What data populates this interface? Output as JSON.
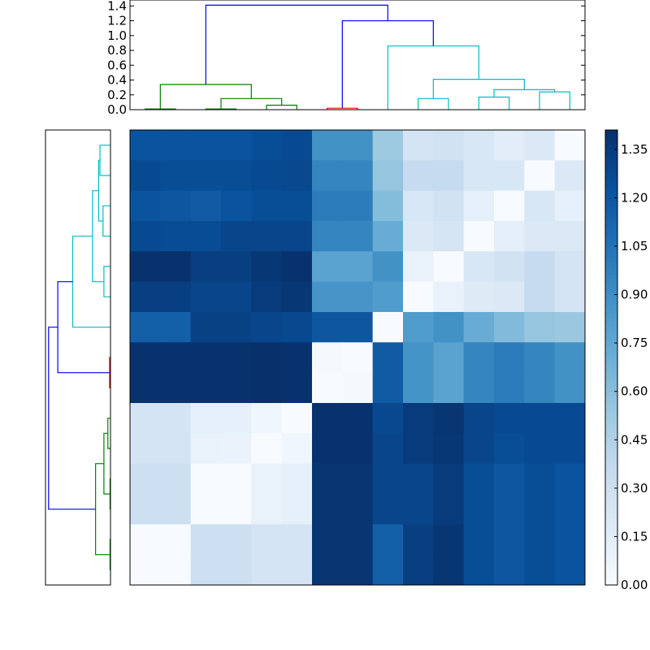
{
  "chart_data": {
    "type": "heatmap",
    "colormap": "Blues",
    "color_range": [
      0.0,
      1.41
    ],
    "colorbar_ticks": [
      "0.00",
      "0.15",
      "0.30",
      "0.45",
      "0.60",
      "0.75",
      "0.90",
      "1.05",
      "1.20",
      "1.35"
    ],
    "colorbar_tick_values": [
      0.0,
      0.15,
      0.3,
      0.45,
      0.6,
      0.75,
      0.9,
      1.05,
      1.2,
      1.35
    ],
    "matrix": [
      [
        1.22,
        1.22,
        1.22,
        1.22,
        1.25,
        1.27,
        0.88,
        0.88,
        0.53,
        0.25,
        0.27,
        0.22,
        0.15,
        0.2,
        0.0
      ],
      [
        1.27,
        1.25,
        1.25,
        1.25,
        1.27,
        1.28,
        0.95,
        0.95,
        0.56,
        0.35,
        0.35,
        0.22,
        0.22,
        0.0,
        0.2
      ],
      [
        1.22,
        1.2,
        1.18,
        1.22,
        1.25,
        1.25,
        1.0,
        1.0,
        0.62,
        0.22,
        0.27,
        0.12,
        0.0,
        0.22,
        0.12
      ],
      [
        1.27,
        1.26,
        1.26,
        1.3,
        1.3,
        1.3,
        0.95,
        0.95,
        0.72,
        0.2,
        0.24,
        0.0,
        0.13,
        0.2,
        0.2
      ],
      [
        1.4,
        1.4,
        1.33,
        1.33,
        1.37,
        1.4,
        0.78,
        0.78,
        0.88,
        0.1,
        0.0,
        0.22,
        0.27,
        0.35,
        0.25
      ],
      [
        1.33,
        1.33,
        1.3,
        1.3,
        1.35,
        1.37,
        0.86,
        0.86,
        0.82,
        0.0,
        0.1,
        0.18,
        0.2,
        0.35,
        0.25
      ],
      [
        1.15,
        1.15,
        1.32,
        1.32,
        1.3,
        1.28,
        1.2,
        1.2,
        0.0,
        0.82,
        0.88,
        0.72,
        0.63,
        0.56,
        0.54
      ],
      [
        1.4,
        1.4,
        1.4,
        1.4,
        1.42,
        1.4,
        0.02,
        0.0,
        1.18,
        0.87,
        0.78,
        0.95,
        1.0,
        0.95,
        0.88
      ],
      [
        1.4,
        1.4,
        1.4,
        1.4,
        1.42,
        1.4,
        0.0,
        0.02,
        1.18,
        0.87,
        0.78,
        0.95,
        1.0,
        0.95,
        0.88
      ],
      [
        0.25,
        0.25,
        0.12,
        0.12,
        0.05,
        0.0,
        1.4,
        1.4,
        1.28,
        1.35,
        1.38,
        1.3,
        1.27,
        1.27,
        1.27
      ],
      [
        0.25,
        0.25,
        0.1,
        0.09,
        0.0,
        0.05,
        1.4,
        1.4,
        1.3,
        1.35,
        1.37,
        1.3,
        1.25,
        1.27,
        1.27
      ],
      [
        0.3,
        0.3,
        0.0,
        0.0,
        0.1,
        0.12,
        1.38,
        1.38,
        1.3,
        1.3,
        1.35,
        1.25,
        1.2,
        1.25,
        1.22
      ],
      [
        0.3,
        0.3,
        0.0,
        0.0,
        0.1,
        0.12,
        1.38,
        1.38,
        1.3,
        1.3,
        1.35,
        1.25,
        1.2,
        1.25,
        1.22
      ],
      [
        0.0,
        0.0,
        0.3,
        0.3,
        0.25,
        0.25,
        1.38,
        1.38,
        1.15,
        1.33,
        1.38,
        1.25,
        1.2,
        1.25,
        1.22
      ],
      [
        0.0,
        0.0,
        0.3,
        0.3,
        0.25,
        0.25,
        1.38,
        1.38,
        1.15,
        1.33,
        1.38,
        1.25,
        1.2,
        1.25,
        1.22
      ]
    ],
    "dendrogram": {
      "height_range": [
        0,
        1.48
      ],
      "height_ticks": [
        "0.0",
        "0.2",
        "0.4",
        "0.6",
        "0.8",
        "1.0",
        "1.2",
        "1.4"
      ],
      "height_tick_values": [
        0,
        0.2,
        0.4,
        0.6,
        0.8,
        1.0,
        1.2,
        1.4
      ],
      "links": [
        {
          "icoord": [
            5,
            5,
            15,
            15
          ],
          "dcoord": [
            0,
            0.01,
            0.01,
            0
          ],
          "color": "#008000"
        },
        {
          "icoord": [
            25,
            25,
            35,
            35
          ],
          "dcoord": [
            0,
            0.01,
            0.01,
            0
          ],
          "color": "#008000"
        },
        {
          "icoord": [
            45,
            45,
            55,
            55
          ],
          "dcoord": [
            0,
            0.06,
            0.06,
            0
          ],
          "color": "#008000"
        },
        {
          "icoord": [
            30,
            30,
            50,
            50
          ],
          "dcoord": [
            0.01,
            0.15,
            0.15,
            0.06
          ],
          "color": "#008000"
        },
        {
          "icoord": [
            10,
            10,
            40,
            40
          ],
          "dcoord": [
            0.01,
            0.34,
            0.34,
            0.15
          ],
          "color": "#008000"
        },
        {
          "icoord": [
            65,
            65,
            75,
            75
          ],
          "dcoord": [
            0,
            0.02,
            0.02,
            0
          ],
          "color": "#ff0000"
        },
        {
          "icoord": [
            95,
            95,
            105,
            105
          ],
          "dcoord": [
            0,
            0.15,
            0.15,
            0
          ],
          "color": "#00bfbf"
        },
        {
          "icoord": [
            115,
            115,
            125,
            125
          ],
          "dcoord": [
            0,
            0.17,
            0.17,
            0
          ],
          "color": "#00bfbf"
        },
        {
          "icoord": [
            135,
            135,
            145,
            145
          ],
          "dcoord": [
            0,
            0.24,
            0.24,
            0
          ],
          "color": "#00bfbf"
        },
        {
          "icoord": [
            120,
            120,
            140,
            140
          ],
          "dcoord": [
            0.17,
            0.27,
            0.27,
            0.24
          ],
          "color": "#00bfbf"
        },
        {
          "icoord": [
            100,
            100,
            130,
            130
          ],
          "dcoord": [
            0.15,
            0.41,
            0.41,
            0.27
          ],
          "color": "#00bfbf"
        },
        {
          "icoord": [
            85,
            85,
            115,
            115
          ],
          "dcoord": [
            0,
            0.86,
            0.86,
            0.41
          ],
          "color": "#00bfbf"
        },
        {
          "icoord": [
            70,
            70,
            100,
            100
          ],
          "dcoord": [
            0.02,
            1.2,
            1.2,
            0.86
          ],
          "color": "#0000ff"
        },
        {
          "icoord": [
            25,
            25,
            85,
            85
          ],
          "dcoord": [
            0.34,
            1.41,
            1.41,
            1.2
          ],
          "color": "#0000ff"
        }
      ]
    }
  }
}
